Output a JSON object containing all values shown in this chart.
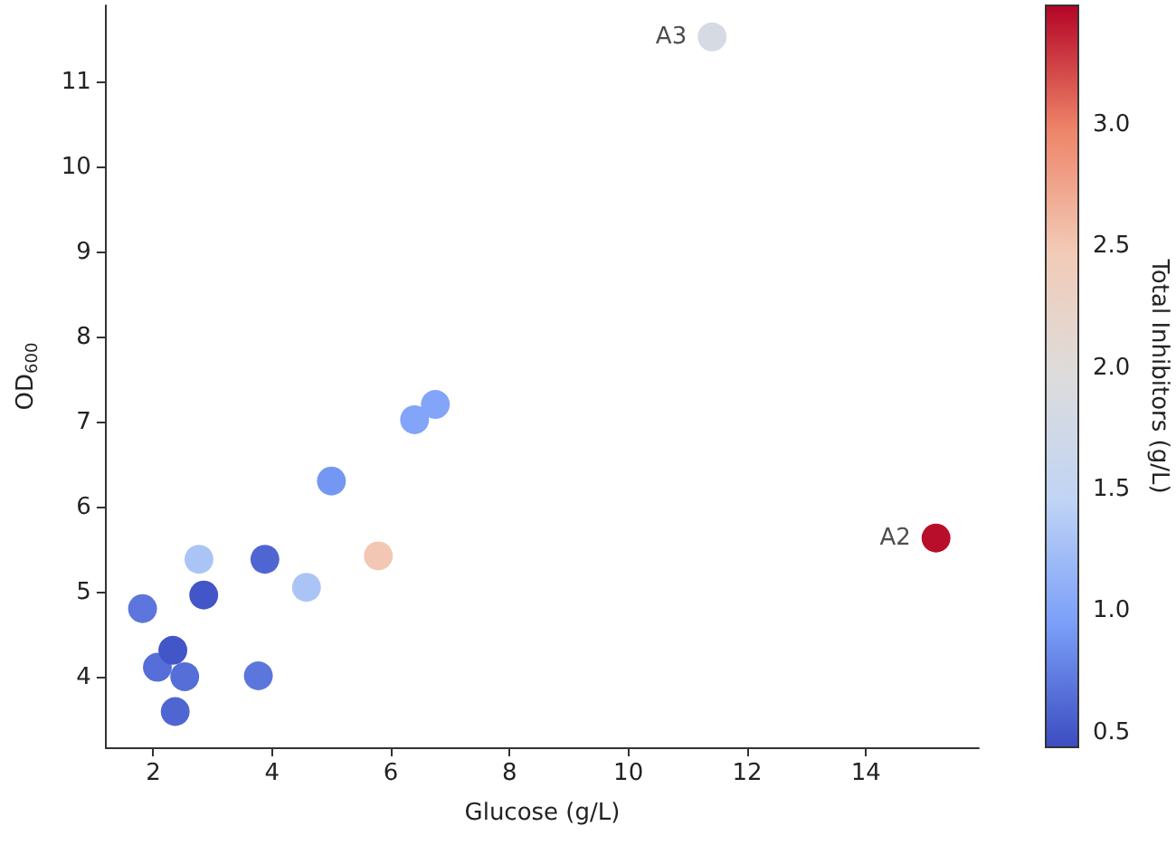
{
  "chart_data": {
    "type": "scatter",
    "xlabel": "Glucose (g/L)",
    "ylabel": "OD$_{600}$",
    "clabel": "Total Inhibitors (g/L)",
    "xlim": [
      1.2,
      15.9
    ],
    "ylim": [
      3.18,
      11.9
    ],
    "xticks": [
      2,
      4,
      6,
      8,
      10,
      12,
      14
    ],
    "yticks": [
      4,
      5,
      6,
      7,
      8,
      9,
      10,
      11
    ],
    "clim": [
      0.44,
      3.49
    ],
    "cticks": [
      0.5,
      {
        "value": 1,
        "label": "1.0"
      },
      1.5,
      {
        "value": 2,
        "label": "2.0"
      },
      2.5,
      {
        "value": 3,
        "label": "3.0"
      }
    ],
    "x": [
      1.82,
      2.07,
      2.33,
      2.53,
      2.37,
      2.77,
      2.85,
      3.77,
      3.88,
      4.58,
      5.0,
      5.79,
      6.4,
      6.75,
      11.41,
      15.18
    ],
    "values": [
      4.81,
      4.12,
      4.32,
      4.01,
      3.6,
      5.39,
      4.97,
      4.02,
      5.39,
      5.06,
      6.31,
      5.43,
      7.03,
      7.21,
      11.53,
      5.64
    ],
    "cvalues": [
      0.7,
      0.65,
      0.5,
      0.65,
      0.6,
      1.3,
      0.5,
      0.7,
      0.6,
      1.3,
      0.9,
      2.5,
      1.0,
      1.0,
      1.85,
      3.45
    ],
    "annotations": [
      {
        "text": "A3",
        "x": 11.41,
        "y": 11.53
      },
      {
        "text": "A2",
        "x": 15.18,
        "y": 5.64
      }
    ],
    "marker": "circle",
    "grid": false
  }
}
